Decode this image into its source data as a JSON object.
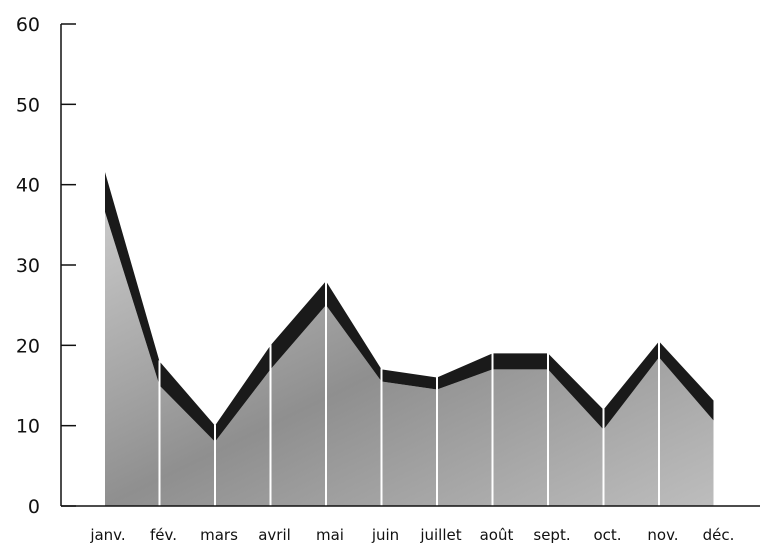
{
  "chart_data": {
    "type": "area",
    "title": "",
    "xlabel": "",
    "ylabel": "",
    "categories": [
      "janv.",
      "fév.",
      "mars",
      "avril",
      "mai",
      "juin",
      "juillet",
      "août",
      "sept.",
      "oct.",
      "nov.",
      "déc."
    ],
    "series": [
      {
        "values_upper": [
          42,
          18,
          10,
          20,
          28,
          17,
          16,
          19,
          19,
          12,
          20.5,
          13
        ],
        "values_lower": [
          37,
          15,
          8,
          17,
          25,
          15.5,
          14.5,
          17,
          17,
          9.5,
          18.5,
          10.5
        ]
      }
    ],
    "ylim": [
      0,
      60
    ],
    "yticks": [
      0,
      10,
      20,
      30,
      40,
      50,
      60
    ],
    "grid": false,
    "legend": "none",
    "colors": {
      "band": "#1a1a1a",
      "fill": "#a9a9a9",
      "axis": "#111111",
      "separator": "#ffffff"
    }
  }
}
